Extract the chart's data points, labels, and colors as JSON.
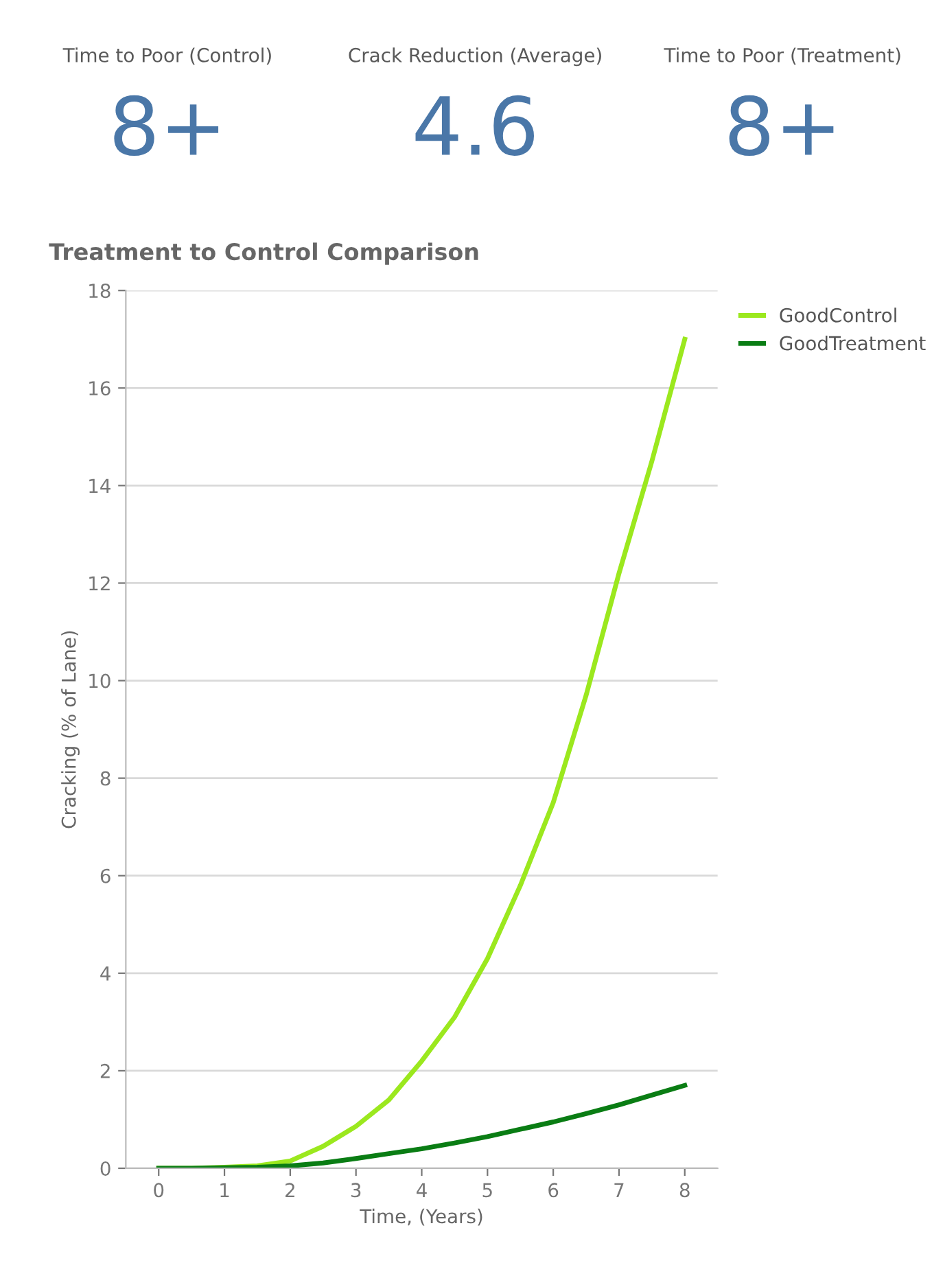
{
  "chart_data": [
    {
      "type": "other",
      "annotations": [
        "Time to Poor (Control)",
        "8+",
        "Crack Reduction (Average)",
        "4.6",
        "Time to Poor (Treatment)",
        "8+"
      ]
    },
    {
      "type": "line",
      "title": "Treatment to Control Comparison",
      "xlabel": "Time, (Years)",
      "ylabel": "Cracking (% of Lane)",
      "x": [
        0,
        0.5,
        1,
        1.5,
        2,
        2.5,
        3,
        3.5,
        4,
        4.5,
        5,
        5.5,
        6,
        6.5,
        7,
        7.5,
        8
      ],
      "series": [
        {
          "name": "GoodControl",
          "color": "#9be81e",
          "values": [
            0,
            0,
            0.02,
            0.05,
            0.15,
            0.45,
            0.86,
            1.4,
            2.2,
            3.1,
            4.3,
            5.8,
            7.5,
            9.7,
            12.2,
            14.5,
            17
          ]
        },
        {
          "name": "GoodTreatment",
          "color": "#0a7d14",
          "values": [
            0,
            0,
            0.01,
            0.02,
            0.05,
            0.11,
            0.2,
            0.3,
            0.4,
            0.52,
            0.65,
            0.8,
            0.95,
            1.12,
            1.3,
            1.5,
            1.7
          ]
        }
      ],
      "xlim": [
        -0.5,
        8.5
      ],
      "xticks": [
        0,
        1,
        2,
        3,
        4,
        5,
        6,
        7,
        8
      ],
      "ylim": [
        0,
        18
      ],
      "yticks": [
        0,
        2,
        4,
        6,
        8,
        10,
        12,
        14,
        16,
        18
      ],
      "grid": "y",
      "legend": "top right",
      "line_style": "solid",
      "marker": "none"
    }
  ]
}
